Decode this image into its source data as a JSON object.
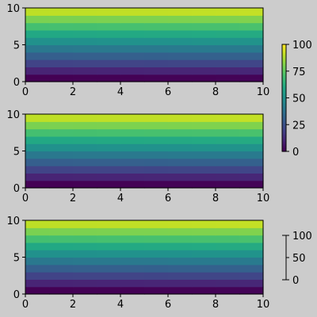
{
  "background": "#cccccc",
  "chart_data": [
    {
      "type": "heatmap",
      "title": "",
      "xlabel": "",
      "ylabel": "",
      "xlim": [
        0,
        10
      ],
      "ylim": [
        0,
        10
      ],
      "x_ticks": [
        "0",
        "2",
        "4",
        "6",
        "8",
        "10"
      ],
      "y_ticks": [
        "0",
        "5",
        "10"
      ],
      "rows": 10,
      "cols": 10,
      "value_function": "z = 10*y + x/10 for cell (x,y), cells 0..9",
      "colormap": "viridis",
      "colorbar": "shared",
      "grid": false
    },
    {
      "type": "heatmap",
      "title": "",
      "xlabel": "",
      "ylabel": "",
      "xlim": [
        0,
        10
      ],
      "ylim": [
        0,
        10
      ],
      "x_ticks": [
        "0",
        "2",
        "4",
        "6",
        "8",
        "10"
      ],
      "y_ticks": [
        "0",
        "5",
        "10"
      ],
      "rows": 10,
      "cols": 10,
      "value_function": "z = 10*y + x/10 for cell (x,y), cells 0..9",
      "colormap": "viridis",
      "colorbar": "shared",
      "grid": false
    },
    {
      "type": "heatmap",
      "title": "",
      "xlabel": "",
      "ylabel": "",
      "xlim": [
        0,
        10
      ],
      "ylim": [
        0,
        10
      ],
      "x_ticks": [
        "0",
        "2",
        "4",
        "6",
        "8",
        "10"
      ],
      "y_ticks": [
        "0",
        "5",
        "10"
      ],
      "rows": 10,
      "cols": 10,
      "value_function": "z = 10*y + x/10 for cell (x,y), cells 0..9",
      "colormap": "viridis",
      "colorbar": "axis only",
      "grid": false
    }
  ],
  "colorbars": [
    {
      "ticks": [
        "0",
        "25",
        "50",
        "75",
        "100"
      ],
      "range": [
        0,
        100
      ],
      "filled": true,
      "colormap": "viridis"
    },
    {
      "ticks": [
        "0",
        "50",
        "100"
      ],
      "range": [
        0,
        100
      ],
      "filled": false
    }
  ]
}
